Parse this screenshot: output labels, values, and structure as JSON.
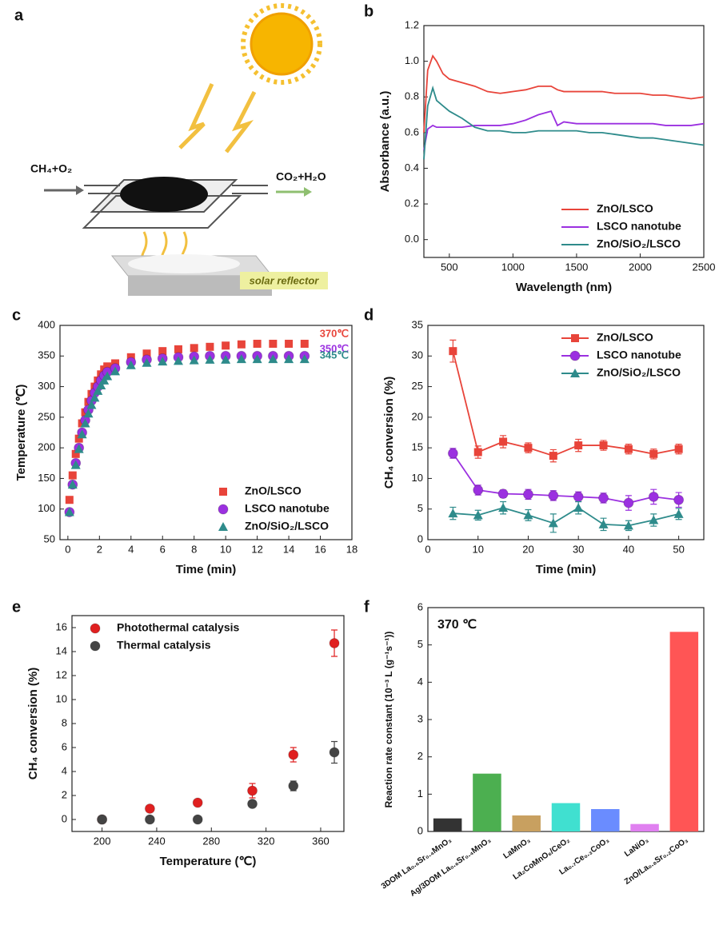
{
  "diagram": {
    "label": "a",
    "inlet": "CH₄+O₂",
    "outlet": "CO₂+H₂O",
    "reflector": "solar reflector"
  },
  "chart_data": [
    {
      "type": "line",
      "label": "b",
      "x_label": "Wavelength (nm)",
      "y_label": "Absorbance (a.u.)",
      "x": [
        300,
        330,
        370,
        400,
        450,
        500,
        600,
        700,
        800,
        900,
        1000,
        1100,
        1200,
        1300,
        1350,
        1400,
        1500,
        1600,
        1700,
        1800,
        1900,
        2000,
        2100,
        2200,
        2300,
        2400,
        2500
      ],
      "series": [
        {
          "name": "ZnO/LSCO",
          "color": "#e8443a",
          "values": [
            0.6,
            0.95,
            1.03,
            1.0,
            0.93,
            0.9,
            0.88,
            0.86,
            0.83,
            0.82,
            0.83,
            0.84,
            0.86,
            0.86,
            0.84,
            0.83,
            0.83,
            0.83,
            0.83,
            0.82,
            0.82,
            0.82,
            0.81,
            0.81,
            0.8,
            0.79,
            0.8
          ]
        },
        {
          "name": "LSCO nanotube",
          "color": "#9b30e0",
          "values": [
            0.5,
            0.62,
            0.64,
            0.63,
            0.63,
            0.63,
            0.63,
            0.64,
            0.64,
            0.64,
            0.65,
            0.67,
            0.7,
            0.72,
            0.64,
            0.66,
            0.65,
            0.65,
            0.65,
            0.65,
            0.65,
            0.65,
            0.65,
            0.64,
            0.64,
            0.64,
            0.65
          ]
        },
        {
          "name": "ZnO/SiO₂/LSCO",
          "color": "#2e8b8b",
          "values": [
            0.45,
            0.75,
            0.85,
            0.78,
            0.75,
            0.72,
            0.68,
            0.63,
            0.61,
            0.61,
            0.6,
            0.6,
            0.61,
            0.61,
            0.61,
            0.61,
            0.61,
            0.6,
            0.6,
            0.59,
            0.58,
            0.57,
            0.57,
            0.56,
            0.55,
            0.54,
            0.53
          ]
        }
      ],
      "xlim": [
        300,
        2500
      ],
      "xticks": [
        500,
        1000,
        1500,
        2000,
        2500
      ],
      "ylim": [
        -0.1,
        1.2
      ],
      "yticks": [
        {
          "value": 0,
          "label": "0.0"
        },
        {
          "value": 0.2,
          "label": "0.2"
        },
        {
          "value": 0.4,
          "label": "0.4"
        },
        {
          "value": 0.6,
          "label": "0.6"
        },
        {
          "value": 0.8,
          "label": "0.8"
        },
        {
          "value": 1,
          "label": "1.0"
        },
        {
          "value": 1.2,
          "label": "1.2"
        }
      ],
      "legend": "lower right"
    },
    {
      "type": "scatter",
      "label": "c",
      "x_label": "Time (min)",
      "y_label": "Temperature (℃)",
      "x": [
        0.1,
        0.3,
        0.5,
        0.7,
        0.9,
        1.1,
        1.3,
        1.5,
        1.7,
        1.9,
        2.1,
        2.3,
        2.5,
        3,
        4,
        5,
        6,
        7,
        8,
        9,
        10,
        11,
        12,
        13,
        14,
        15
      ],
      "series": [
        {
          "name": "ZnO/LSCO",
          "color": "#e8443a",
          "marker": "square",
          "values": [
            115,
            155,
            190,
            215,
            240,
            258,
            275,
            288,
            300,
            310,
            320,
            328,
            333,
            338,
            348,
            354,
            358,
            361,
            363,
            365,
            367,
            369,
            370,
            370,
            370,
            370
          ]
        },
        {
          "name": "LSCO nanotube",
          "color": "#9b30e0",
          "marker": "circle",
          "values": [
            95,
            140,
            175,
            200,
            225,
            245,
            262,
            277,
            290,
            300,
            310,
            318,
            324,
            330,
            340,
            344,
            346,
            348,
            349,
            350,
            350,
            350,
            350,
            350,
            350,
            350
          ]
        },
        {
          "name": "ZnO/SiO₂/LSCO",
          "color": "#2e8b8b",
          "marker": "triangle",
          "values": [
            95,
            140,
            172,
            198,
            222,
            240,
            256,
            270,
            282,
            293,
            302,
            310,
            317,
            325,
            335,
            339,
            341,
            342,
            343,
            344,
            344,
            345,
            345,
            345,
            345,
            345
          ]
        }
      ],
      "annotations": [
        {
          "text": "370℃",
          "color": "#e8443a"
        },
        {
          "text": "350℃",
          "color": "#9b30e0"
        },
        {
          "text": "345℃",
          "color": "#2e8b8b"
        }
      ],
      "xlim": [
        -0.5,
        18
      ],
      "xticks": [
        0,
        2,
        4,
        6,
        8,
        10,
        12,
        14,
        16,
        18
      ],
      "ylim": [
        50,
        400
      ],
      "yticks": [
        50,
        100,
        150,
        200,
        250,
        300,
        350,
        400
      ],
      "legend": "lower right"
    },
    {
      "type": "line",
      "label": "d",
      "x_label": "Time (min)",
      "y_label": "CH₄ conversion (%)",
      "x": [
        5,
        10,
        15,
        20,
        25,
        30,
        35,
        40,
        45,
        50
      ],
      "series": [
        {
          "name": "ZnO/LSCO",
          "color": "#e8443a",
          "marker": "square",
          "values": [
            30.8,
            14.3,
            16.0,
            15.0,
            13.7,
            15.4,
            15.4,
            14.8,
            14.0,
            14.8
          ],
          "errors": [
            1.8,
            1.0,
            1.0,
            0.8,
            1.0,
            1.0,
            0.8,
            0.8,
            0.8,
            0.8
          ]
        },
        {
          "name": "LSCO nanotube",
          "color": "#9b30e0",
          "marker": "circle",
          "values": [
            14.1,
            8.1,
            7.5,
            7.4,
            7.2,
            7.0,
            6.8,
            6.0,
            7.0,
            6.5
          ],
          "errors": [
            0.8,
            0.8,
            0.6,
            0.8,
            0.8,
            0.8,
            0.8,
            1.2,
            1.2,
            1.2
          ]
        },
        {
          "name": "ZnO/SiO₂/LSCO",
          "color": "#2e8b8b",
          "marker": "triangle",
          "values": [
            4.3,
            4.0,
            5.2,
            4.0,
            2.7,
            5.2,
            2.5,
            2.3,
            3.2,
            4.2
          ],
          "errors": [
            1.0,
            0.8,
            1.0,
            0.9,
            1.5,
            1.0,
            1.0,
            0.8,
            1.0,
            0.9
          ]
        }
      ],
      "xlim": [
        0,
        55
      ],
      "xticks": [
        0,
        10,
        20,
        30,
        40,
        50
      ],
      "ylim": [
        0,
        35
      ],
      "yticks": [
        0,
        5,
        10,
        15,
        20,
        25,
        30,
        35
      ],
      "legend": "upper right"
    },
    {
      "type": "scatter",
      "label": "e",
      "x_label": "Temperature (℃)",
      "y_label": "CH₄ conversion (%)",
      "x": [
        200,
        235,
        270,
        310,
        340,
        370
      ],
      "series": [
        {
          "name": "Photothermal catalysis",
          "color": "#e02020",
          "marker": "circle",
          "values": [
            0,
            0.9,
            1.4,
            2.4,
            5.4,
            14.7
          ],
          "errors": [
            0,
            0,
            0,
            0.6,
            0.6,
            1.1
          ]
        },
        {
          "name": "Thermal catalysis",
          "color": "#444444",
          "marker": "circle",
          "values": [
            0,
            0,
            0,
            1.3,
            2.8,
            5.6
          ],
          "errors": [
            0,
            0,
            0,
            0,
            0.4,
            0.9
          ]
        }
      ],
      "xlim": [
        178,
        377
      ],
      "xticks": [
        200,
        240,
        280,
        320,
        360
      ],
      "ylim": [
        -1,
        17
      ],
      "yticks": [
        0,
        2,
        4,
        6,
        8,
        10,
        12,
        14,
        16
      ],
      "legend": "upper left"
    },
    {
      "type": "bar",
      "label": "f",
      "y_label": "Reaction rate constant (10⁻³ L (g⁻¹s⁻¹))",
      "annotation": "370 ℃",
      "categories": [
        "3DOM La₀.₆Sr₀.₄MnO₃",
        "Ag/3DOM La₀.₆Sr₀.₄MnO₃",
        "LaMnO₃",
        "La₂CoMnO₆/CeO₂",
        "La₀.₇Ce₀.₃CoO₃",
        "LaNiO₃",
        "ZnO/La₀.₈Sr₀.₂CoO₃"
      ],
      "values": [
        0.35,
        1.55,
        0.43,
        0.76,
        0.6,
        0.2,
        5.35
      ],
      "colors": [
        "#333333",
        "#4caf50",
        "#c8a060",
        "#40e0d0",
        "#6a8cff",
        "#e080f0",
        "#ff5555"
      ],
      "ylim": [
        0,
        6
      ],
      "yticks": [
        0,
        1,
        2,
        3,
        4,
        5,
        6
      ]
    }
  ]
}
